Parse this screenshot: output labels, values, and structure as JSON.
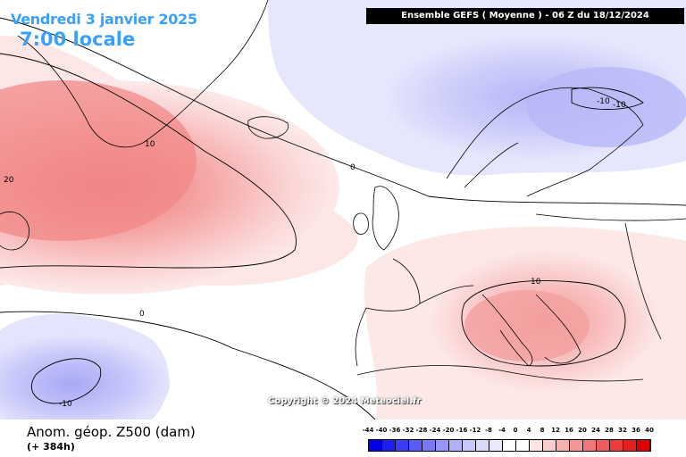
{
  "header": {
    "date": "Vendredi 3 janvier 2025",
    "time": "7:00 locale",
    "model_run": "Ensemble GEFS  ( Moyenne )  -  06 Z du 18/12/2024"
  },
  "copyright": "Copyright © 2024 Meteociel.fr",
  "footer": {
    "field": "Anom. géop. Z500 (dam)",
    "lead": "(+ 384h)"
  },
  "contour_labels": [
    "20",
    "10",
    "0",
    "-10",
    "10",
    "-10",
    "0",
    "-10"
  ],
  "colors": {
    "title": "#3aa0ff",
    "land_outline": "#000000"
  },
  "scale": {
    "ticks": [
      "-44",
      "-40",
      "-36",
      "-32",
      "-28",
      "-24",
      "-20",
      "-16",
      "-12",
      "-8",
      "-4",
      "0",
      "4",
      "8",
      "12",
      "16",
      "20",
      "24",
      "28",
      "32",
      "36",
      "40"
    ],
    "colors": [
      "#0000e8",
      "#1e1ef0",
      "#3c3cf4",
      "#5a5af6",
      "#7878f8",
      "#9696fa",
      "#b0b0fb",
      "#c8c8fc",
      "#dadafd",
      "#e8e8fe",
      "#ffffff",
      "#ffffff",
      "#fde4e4",
      "#fbcccc",
      "#f8b0b0",
      "#f59696",
      "#f27878",
      "#ef5a5a",
      "#ec3c3c",
      "#e81e1e",
      "#e00000"
    ]
  }
}
